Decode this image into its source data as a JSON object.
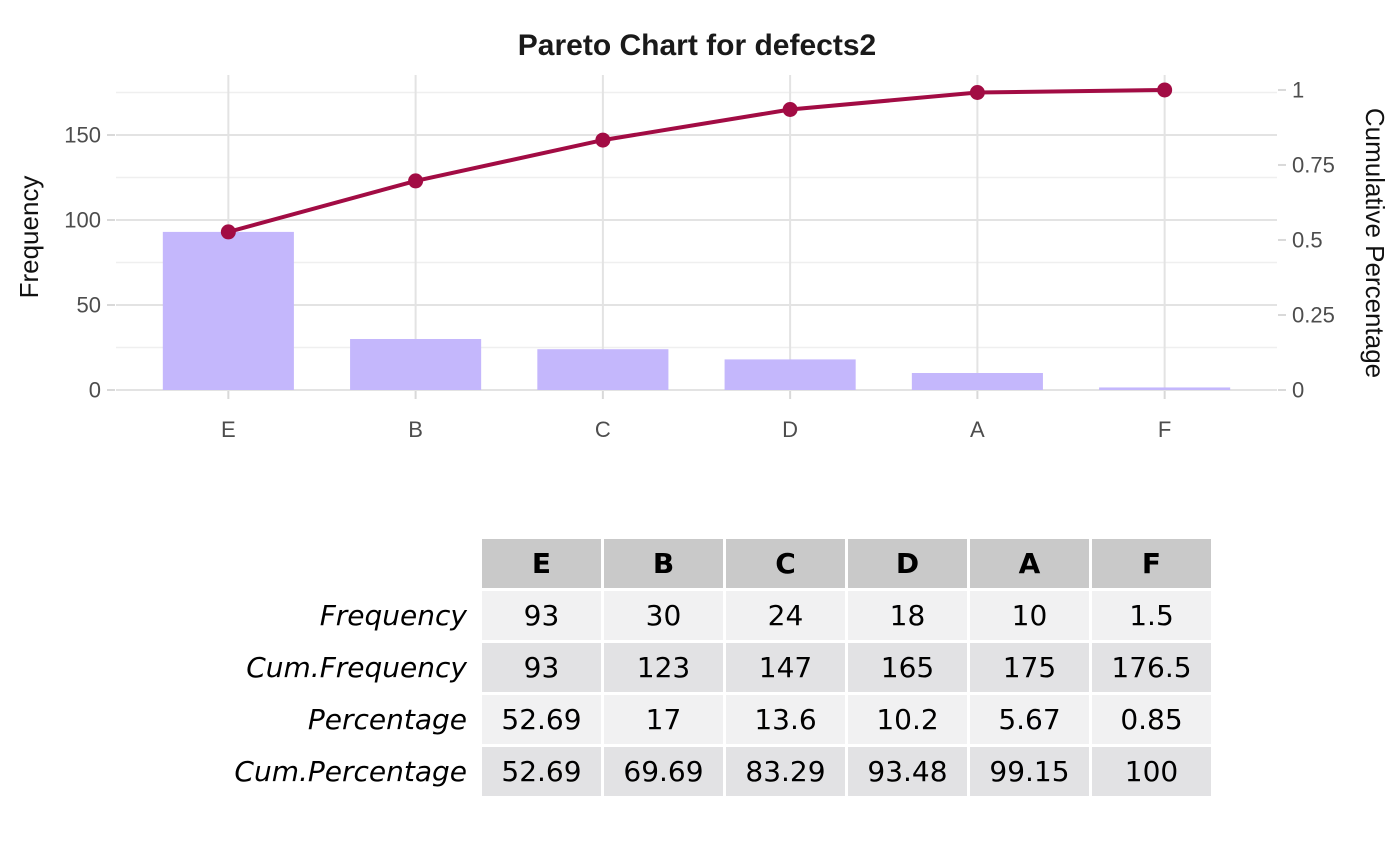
{
  "chart_data": {
    "type": "bar",
    "subtype": "pareto",
    "title": "Pareto Chart for defects2",
    "categories": [
      "E",
      "B",
      "C",
      "D",
      "A",
      "F"
    ],
    "series": [
      {
        "name": "Frequency",
        "type": "bar",
        "values": [
          93,
          30,
          24,
          18,
          10,
          1.5
        ]
      },
      {
        "name": "Cumulative Frequency",
        "type": "line",
        "values": [
          93,
          123,
          147,
          165,
          175,
          176.5
        ]
      }
    ],
    "total": 176.5,
    "ylabel_left": "Frequency",
    "ylabel_right": "Cumulative Percentage",
    "left_axis": {
      "ticks": [
        0,
        50,
        100,
        150
      ],
      "minor_ticks": [
        25,
        75,
        125,
        175
      ],
      "range": [
        0,
        185
      ]
    },
    "right_axis": {
      "tick_labels": [
        "0",
        "0.25",
        "0.5",
        "0.75",
        "1"
      ],
      "tick_values": [
        0,
        0.25,
        0.5,
        0.75,
        1
      ],
      "range": [
        0,
        1.048
      ]
    },
    "grid": true,
    "legend_position": "none"
  },
  "table": {
    "column_headers": [
      "E",
      "B",
      "C",
      "D",
      "A",
      "F"
    ],
    "rows": [
      {
        "label": "Frequency",
        "values": [
          "93",
          "30",
          "24",
          "18",
          "10",
          "1.5"
        ]
      },
      {
        "label": "Cum.Frequency",
        "values": [
          "93",
          "123",
          "147",
          "165",
          "175",
          "176.5"
        ]
      },
      {
        "label": "Percentage",
        "values": [
          "52.69",
          "17",
          "13.6",
          "10.2",
          "5.67",
          "0.85"
        ]
      },
      {
        "label": "Cum.Percentage",
        "values": [
          "52.69",
          "69.69",
          "83.29",
          "93.48",
          "99.15",
          "100"
        ]
      }
    ]
  },
  "colors": {
    "background": "#FFFFFF",
    "bar_fill": "#C4B7FC",
    "line_stroke": "#A20C44",
    "grid_major": "#E3E3E3",
    "grid_minor": "#EFEFEF",
    "tick_mark": "#D9D9D9",
    "tick_text": "#4D4D4D",
    "title_text": "#1A1A1A",
    "table_header_bg": "#C9C9C9",
    "table_row_light_bg": "#F1F1F2",
    "table_row_dark_bg": "#E2E2E4"
  }
}
